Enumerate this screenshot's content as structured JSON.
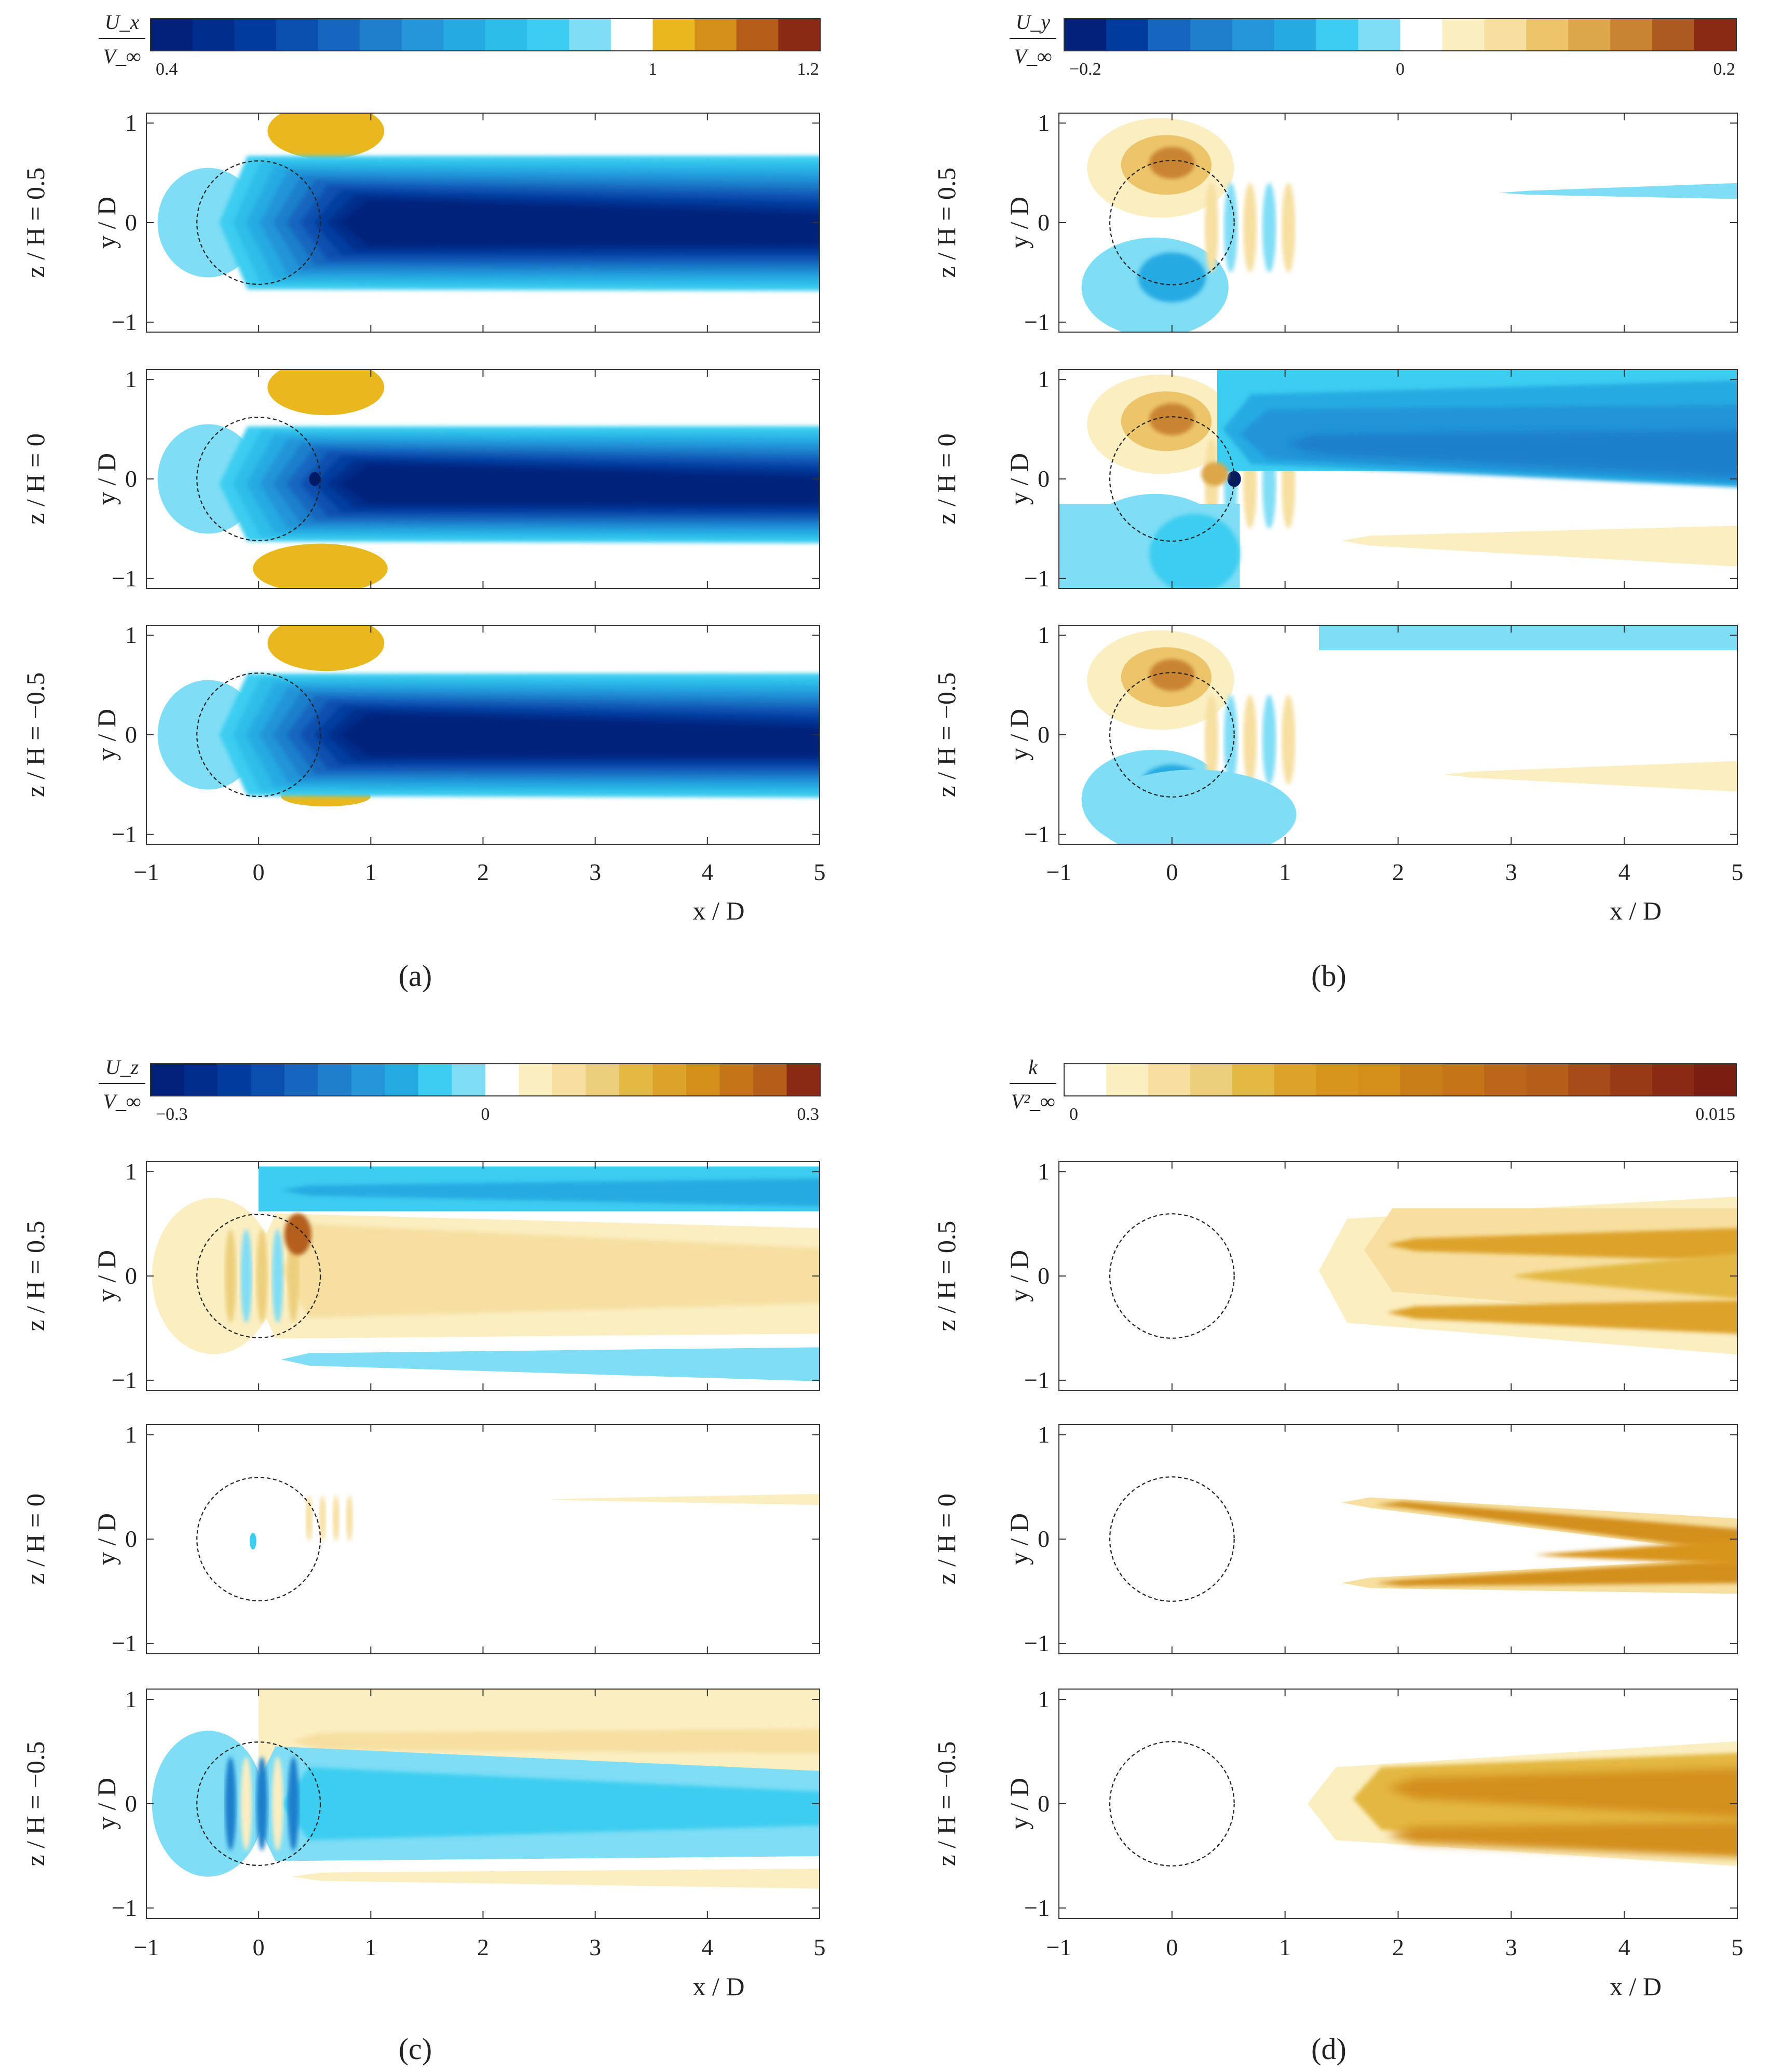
{
  "chart_data": [
    {
      "type": "contour",
      "panel": "(a)",
      "quantity": {
        "num": "U_x",
        "den": "V_∞"
      },
      "colorbar": {
        "range": [
          0.4,
          1.2
        ],
        "tick_labels": [
          "0.4",
          "1",
          "1.2"
        ],
        "tick_values": [
          0.4,
          1.0,
          1.2
        ],
        "colors": [
          "#00207a",
          "#002d8c",
          "#003c9e",
          "#0a4fae",
          "#1766bd",
          "#1f7fcc",
          "#2495d8",
          "#26aae2",
          "#2dbde9",
          "#3ccdf0",
          "#7fddf5",
          "#ffffff",
          "#e8b81e",
          "#d38f1a",
          "#b45e1a",
          "#8a2a14"
        ]
      },
      "xlabel": "x / D",
      "ylabel": "y / D",
      "xlim": [
        -1,
        5
      ],
      "ylim": [
        -1.1,
        1.1
      ],
      "x_ticks": [
        "−1",
        "0",
        "1",
        "2",
        "3",
        "4",
        "5"
      ],
      "y_ticks": [
        "1",
        "0",
        "−1"
      ],
      "subplots": [
        {
          "label": "z / H = 0.5",
          "wake_half_width": 0.72,
          "min_value": 0.45
        },
        {
          "label": "z / H = 0",
          "wake_half_width": 0.62,
          "min_value": 0.4
        },
        {
          "label": "z / H = −0.5",
          "wake_half_width": 0.66,
          "min_value": 0.42
        }
      ]
    },
    {
      "type": "contour",
      "panel": "(b)",
      "quantity": {
        "num": "U_y",
        "den": "V_∞"
      },
      "colorbar": {
        "range": [
          -0.2,
          0.2
        ],
        "tick_labels": [
          "−0.2",
          "0",
          "0.2"
        ],
        "tick_values": [
          -0.2,
          0.0,
          0.2
        ],
        "colors": [
          "#00207a",
          "#003c9e",
          "#1766bd",
          "#1f7fcc",
          "#2495d8",
          "#26aae2",
          "#3ccdf0",
          "#7fddf5",
          "#ffffff",
          "#fbeec1",
          "#f6dfa0",
          "#ecc56b",
          "#dca64a",
          "#c98432",
          "#ad5a22",
          "#8a2a14"
        ]
      },
      "xlabel": "x / D",
      "ylabel": "y / D",
      "xlim": [
        -1,
        5
      ],
      "ylim": [
        -1.1,
        1.1
      ],
      "x_ticks": [
        "−1",
        "0",
        "1",
        "2",
        "3",
        "4",
        "5"
      ],
      "y_ticks": [
        "1",
        "0",
        "−1"
      ],
      "subplots": [
        {
          "label": "z / H = 0.5"
        },
        {
          "label": "z / H = 0"
        },
        {
          "label": "z / H = −0.5"
        }
      ]
    },
    {
      "type": "contour",
      "panel": "(c)",
      "quantity": {
        "num": "U_z",
        "den": "V_∞"
      },
      "colorbar": {
        "range": [
          -0.3,
          0.3
        ],
        "tick_labels": [
          "−0.3",
          "0",
          "0.3"
        ],
        "tick_values": [
          -0.3,
          0.0,
          0.3
        ],
        "colors": [
          "#00207a",
          "#002d8c",
          "#003c9e",
          "#0a4fae",
          "#1766bd",
          "#1f7fcc",
          "#2495d8",
          "#26aae2",
          "#3ccdf0",
          "#7fddf5",
          "#ffffff",
          "#fbeec1",
          "#f6dfa0",
          "#eccf7c",
          "#e3b843",
          "#dda22a",
          "#d38f1a",
          "#c57418",
          "#b45e1a",
          "#8a2a14"
        ]
      },
      "xlabel": "x / D",
      "ylabel": "y / D",
      "xlim": [
        -1,
        5
      ],
      "ylim": [
        -1.1,
        1.1
      ],
      "x_ticks": [
        "−1",
        "0",
        "1",
        "2",
        "3",
        "4",
        "5"
      ],
      "y_ticks": [
        "1",
        "0",
        "−1"
      ],
      "subplots": [
        {
          "label": "z / H = 0.5"
        },
        {
          "label": "z / H = 0"
        },
        {
          "label": "z / H = −0.5"
        }
      ]
    },
    {
      "type": "contour",
      "panel": "(d)",
      "quantity": {
        "num": "k",
        "den": "V²_∞"
      },
      "colorbar": {
        "range": [
          0,
          0.015
        ],
        "tick_labels": [
          "0",
          "0.015"
        ],
        "tick_values": [
          0,
          0.015
        ],
        "colors": [
          "#ffffff",
          "#fbeec1",
          "#f6dfa0",
          "#eccf7c",
          "#e3b843",
          "#dda22a",
          "#d8951e",
          "#d38f1a",
          "#c97e18",
          "#c57418",
          "#bb6619",
          "#b45e1a",
          "#a54a18",
          "#983a16",
          "#8a2a14",
          "#7a1e12"
        ]
      },
      "xlabel": "x / D",
      "ylabel": "y / D",
      "xlim": [
        -1,
        5
      ],
      "ylim": [
        -1.1,
        1.1
      ],
      "x_ticks": [
        "−1",
        "0",
        "1",
        "2",
        "3",
        "4",
        "5"
      ],
      "y_ticks": [
        "1",
        "0",
        "−1"
      ],
      "subplots": [
        {
          "label": "z / H = 0.5"
        },
        {
          "label": "z / H = 0"
        },
        {
          "label": "z / H = −0.5"
        }
      ]
    }
  ]
}
